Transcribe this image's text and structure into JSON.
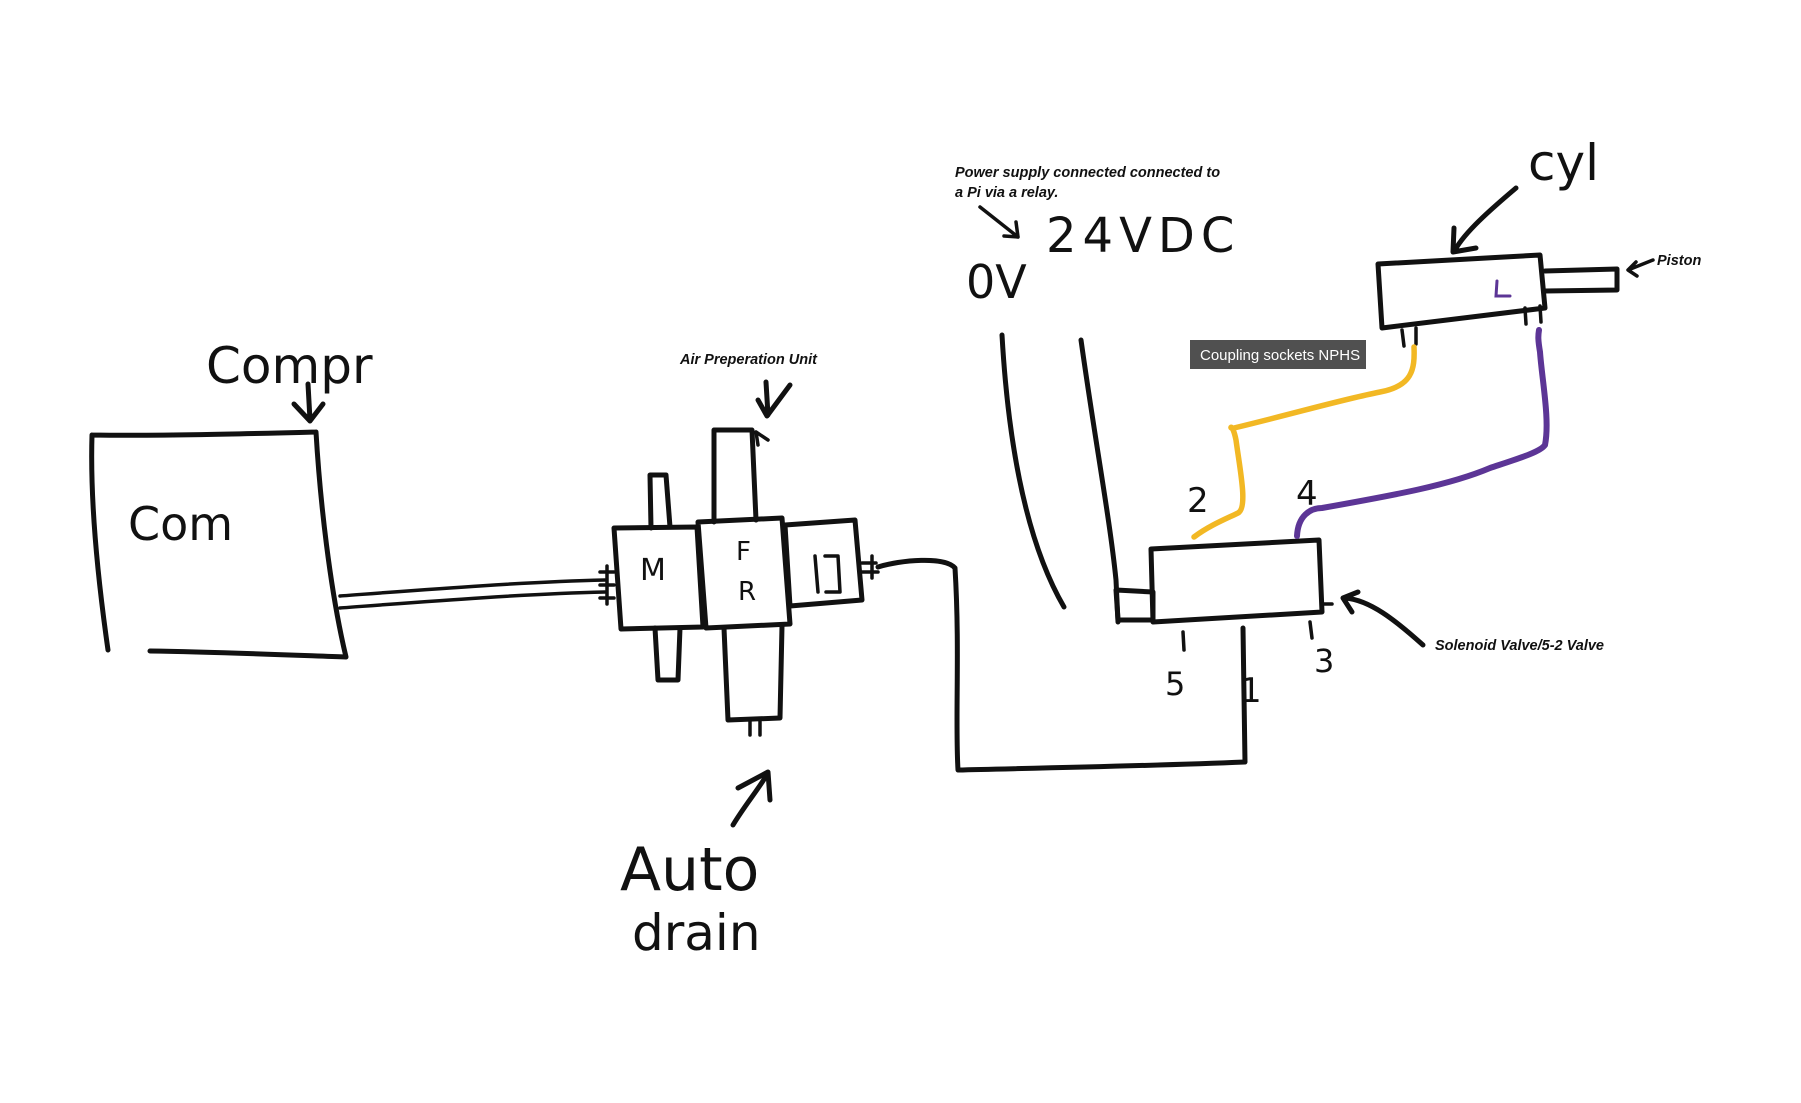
{
  "handwritten": {
    "compressor_label": "Compr",
    "compressor_inside": "Com",
    "module_m": "M",
    "module_f": "F",
    "module_r": "R",
    "auto_drain_line1": "Auto",
    "auto_drain_line2": "drain",
    "zero_volt": "0V",
    "supply_voltage": "24VDC",
    "cylinder": "cyl",
    "port_2": "2",
    "port_4": "4",
    "port_5": "5",
    "port_1": "1",
    "port_3": "3"
  },
  "notes": {
    "air_prep": "Air Preperation Unit",
    "power_line1": "Power supply connected connected to",
    "power_line2": "a Pi via a relay.",
    "piston": "Piston",
    "solenoid": "Solenoid Valve/5-2 Valve"
  },
  "tag": {
    "coupling": "Coupling sockets NPHS"
  },
  "colors": {
    "ink": "#111111",
    "tube_yellow": "#f2b824",
    "tube_purple": "#5c3596",
    "tag_background": "#505050"
  }
}
